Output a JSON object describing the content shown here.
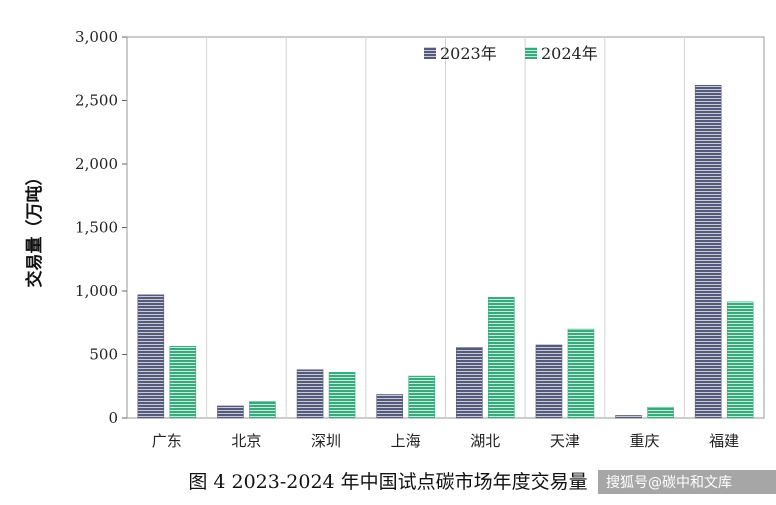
{
  "chart_data": {
    "type": "bar",
    "title": "",
    "xlabel": "",
    "ylabel": "交易量（万吨）",
    "ylim": [
      0,
      3000
    ],
    "yticks": [
      "0",
      "500",
      "1,000",
      "1,500",
      "2,000",
      "2,500",
      "3,000"
    ],
    "ytick_values": [
      0,
      500,
      1000,
      1500,
      2000,
      2500,
      3000
    ],
    "categories": [
      "广东",
      "北京",
      "深圳",
      "上海",
      "湖北",
      "天津",
      "重庆",
      "福建"
    ],
    "series": [
      {
        "name": "2023年",
        "values": [
          970,
          95,
          380,
          185,
          555,
          575,
          20,
          2620
        ],
        "color": "#5a5e7e"
      },
      {
        "name": "2024年",
        "values": [
          565,
          130,
          360,
          330,
          950,
          700,
          85,
          915
        ],
        "color": "#3fae84"
      }
    ],
    "legend_position": "top-center",
    "grid": "vertical separators"
  },
  "caption": "图 4 2023-2024 年中国试点碳市场年度交易量",
  "watermark": "搜狐号@碳中和文库"
}
